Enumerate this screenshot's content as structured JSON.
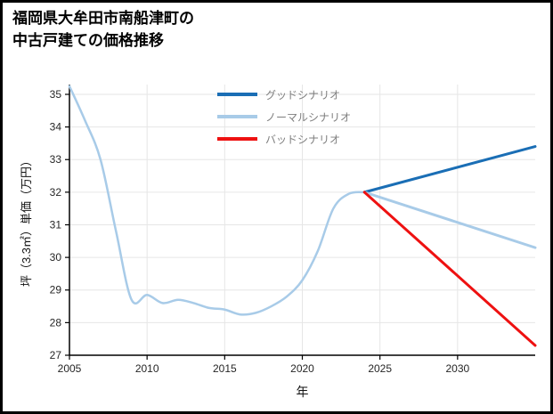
{
  "title": {
    "line1": "福岡県大牟田市南船津町の",
    "line2": "中古戸建ての価格推移"
  },
  "chart_data": {
    "type": "line",
    "title": "福岡県大牟田市南船津町の中古戸建ての価格推移",
    "xlabel": "年",
    "ylabel": "坪（3.3㎡）単価（万円）",
    "xlim": [
      2005,
      2035
    ],
    "ylim": [
      27,
      35.3
    ],
    "xticks": [
      2005,
      2010,
      2015,
      2020,
      2025,
      2030
    ],
    "yticks": [
      27,
      28,
      29,
      30,
      31,
      32,
      33,
      34,
      35
    ],
    "grid": true,
    "grid_color": "#e6e6e6",
    "legend_position": "upper-center-left",
    "series": [
      {
        "id": "history",
        "color": "#a8cbe8",
        "width": 2.5,
        "smooth": true,
        "x": [
          2005,
          2006,
          2007,
          2008,
          2009,
          2010,
          2011,
          2012,
          2013,
          2014,
          2015,
          2016,
          2017,
          2018,
          2019,
          2020,
          2021,
          2022,
          2023,
          2024
        ],
        "y": [
          35.25,
          34.2,
          33.0,
          30.8,
          28.7,
          28.85,
          28.6,
          28.7,
          28.6,
          28.45,
          28.4,
          28.25,
          28.3,
          28.5,
          28.8,
          29.3,
          30.2,
          31.5,
          31.95,
          32.0
        ]
      },
      {
        "id": "good",
        "label": "グッドシナリオ",
        "color": "#1a6eb5",
        "width": 3,
        "smooth": false,
        "x": [
          2024,
          2035
        ],
        "y": [
          32.0,
          33.4
        ]
      },
      {
        "id": "normal",
        "label": "ノーマルシナリオ",
        "color": "#a8cbe8",
        "width": 3,
        "smooth": false,
        "x": [
          2024,
          2035
        ],
        "y": [
          32.0,
          30.3
        ]
      },
      {
        "id": "bad",
        "label": "バッドシナリオ",
        "color": "#ee1111",
        "width": 3,
        "smooth": false,
        "x": [
          2024,
          2035
        ],
        "y": [
          32.0,
          27.3
        ]
      }
    ]
  }
}
